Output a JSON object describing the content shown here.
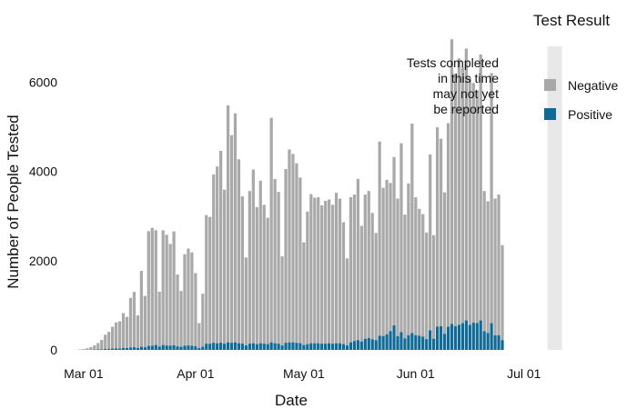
{
  "chart_data": {
    "type": "bar",
    "stacked": true,
    "title": "",
    "xlabel": "Date",
    "ylabel": "Number of People Tested",
    "ylim": [
      0,
      6800
    ],
    "yticks": [
      0,
      2000,
      4000,
      6000
    ],
    "x_start": "2020-02-28",
    "x_ticks": [
      {
        "label": "Mar 01",
        "date": "2020-03-01"
      },
      {
        "label": "Apr 01",
        "date": "2020-04-01"
      },
      {
        "label": "May 01",
        "date": "2020-05-01"
      },
      {
        "label": "Jun 01",
        "date": "2020-06-01"
      },
      {
        "label": "Jul 01",
        "date": "2020-07-01"
      }
    ],
    "grid": false,
    "legend": {
      "title": "Test Result",
      "position": "right",
      "entries": [
        {
          "name": "Negative",
          "color": "#a9a9a9"
        },
        {
          "name": "Positive",
          "color": "#0f6a96"
        }
      ]
    },
    "annotation": {
      "lines": [
        "Tests completed",
        "in this time",
        "may not yet",
        "be reported"
      ],
      "shaded_start": "2020-07-08",
      "shaded_end": "2020-07-11",
      "shaded_color": "#dedede"
    },
    "series": [
      {
        "name": "Negative",
        "values": [
          3,
          10,
          18,
          35,
          60,
          95,
          145,
          210,
          320,
          380,
          490,
          580,
          610,
          780,
          700,
          1110,
          1240,
          730,
          1700,
          1150,
          2570,
          2640,
          2570,
          1230,
          2570,
          2480,
          2280,
          2550,
          1610,
          1250,
          2050,
          2170,
          2090,
          1640,
          560,
          1190,
          2880,
          2840,
          3770,
          3960,
          4300,
          3450,
          5310,
          4650,
          5130,
          4120,
          3300,
          1970,
          3420,
          3890,
          3070,
          3640,
          3110,
          2830,
          5030,
          3680,
          3400,
          2000,
          3890,
          4320,
          4220,
          4020,
          3710,
          2300,
          2970,
          3340,
          3260,
          3270,
          3100,
          3200,
          3220,
          3110,
          3370,
          3240,
          2730,
          1950,
          3250,
          3280,
          3610,
          2590,
          3230,
          3290,
          2830,
          2400,
          4350,
          3320,
          3460,
          3320,
          3770,
          3080,
          4230,
          2770,
          3400,
          4690,
          3090,
          2840,
          2740,
          2390,
          3940,
          2320,
          4470,
          4200,
          3170,
          4560,
          6380,
          5660,
          5970,
          5730,
          6090,
          5540,
          5370,
          5210,
          5960,
          3140,
          2950,
          5600,
          3060,
          3150,
          2130
        ]
      },
      {
        "name": "Positive",
        "values": [
          0,
          1,
          2,
          3,
          5,
          8,
          10,
          15,
          20,
          25,
          30,
          35,
          30,
          45,
          40,
          55,
          60,
          45,
          70,
          60,
          90,
          95,
          110,
          75,
          110,
          100,
          95,
          105,
          80,
          70,
          95,
          100,
          95,
          80,
          40,
          70,
          140,
          140,
          160,
          150,
          160,
          140,
          170,
          160,
          170,
          150,
          140,
          100,
          140,
          150,
          130,
          150,
          140,
          130,
          170,
          150,
          140,
          100,
          160,
          170,
          170,
          160,
          150,
          110,
          130,
          150,
          150,
          150,
          140,
          140,
          150,
          140,
          150,
          150,
          130,
          100,
          170,
          200,
          220,
          190,
          250,
          270,
          240,
          220,
          320,
          310,
          350,
          420,
          550,
          310,
          400,
          260,
          330,
          380,
          330,
          320,
          300,
          240,
          440,
          250,
          520,
          530,
          360,
          520,
          580,
          530,
          560,
          600,
          660,
          560,
          610,
          600,
          660,
          420,
          380,
          600,
          330,
          330,
          220
        ]
      }
    ]
  }
}
